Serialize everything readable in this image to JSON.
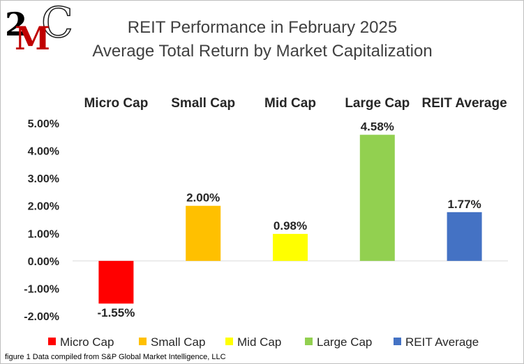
{
  "logo": {
    "text_top": "2",
    "text_m": "M",
    "text_c": "C",
    "color_dark": "#1a1a1a",
    "color_red": "#c00000"
  },
  "title": "REIT Performance  in February 2025",
  "subtitle": "Average Total Return by Market Capitalization",
  "caption": "figure 1 Data compiled from S&P Global Market Intelligence, LLC",
  "chart_data": {
    "type": "bar",
    "categories": [
      "Micro Cap",
      "Small Cap",
      "Mid Cap",
      "Large Cap",
      "REIT Average"
    ],
    "values": [
      -1.55,
      2.0,
      0.98,
      4.58,
      1.77
    ],
    "data_labels": [
      "-1.55%",
      "2.00%",
      "0.98%",
      "4.58%",
      "1.77%"
    ],
    "colors": [
      "#ff0000",
      "#ffc000",
      "#ffff00",
      "#92d050",
      "#4472c4"
    ],
    "ylim": [
      -2.0,
      5.0
    ],
    "yticks": [
      5.0,
      4.0,
      3.0,
      2.0,
      1.0,
      0.0,
      -1.0,
      -2.0
    ],
    "ytick_labels": [
      "5.00%",
      "4.00%",
      "3.00%",
      "2.00%",
      "1.00%",
      "0.00%",
      "-1.00%",
      "-2.00%"
    ],
    "category_labels_position": "top",
    "legend": [
      "Micro Cap",
      "Small Cap",
      "Mid Cap",
      "Large Cap",
      "REIT Average"
    ],
    "legend_position": "bottom",
    "grid": false
  }
}
